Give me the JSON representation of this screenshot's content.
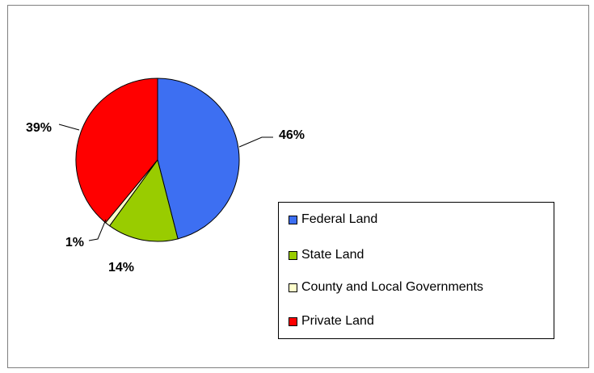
{
  "chart_data": {
    "type": "pie",
    "title": "",
    "slices": [
      {
        "label": "Federal Land",
        "value": 46,
        "value_label": "46%",
        "color": "#3d6ff2"
      },
      {
        "label": "State Land",
        "value": 14,
        "value_label": "14%",
        "color": "#99cc00"
      },
      {
        "label": "County and Local Governments",
        "value": 1,
        "value_label": "1%",
        "color": "#ffffcc"
      },
      {
        "label": "Private Land",
        "value": 39,
        "value_label": "39%",
        "color": "#ff0000"
      }
    ],
    "legend": {
      "placement": "right",
      "items": [
        "Federal Land",
        "State Land",
        "County and Local Governments",
        "Private Land"
      ]
    }
  }
}
